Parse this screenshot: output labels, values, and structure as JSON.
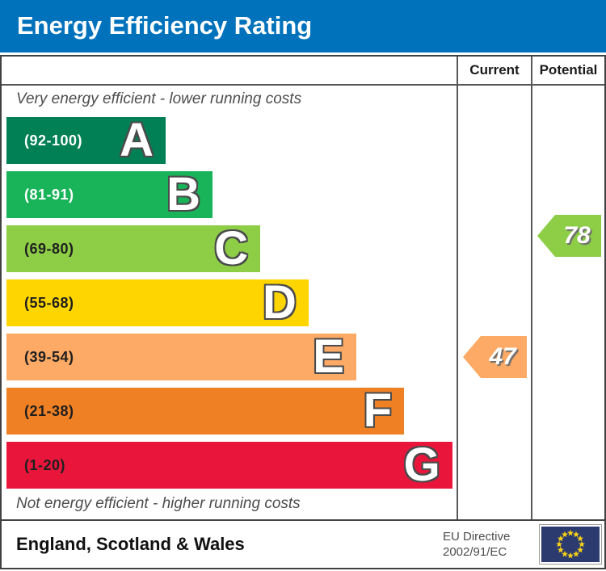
{
  "title": "Energy Efficiency Rating",
  "columns": {
    "current": "Current",
    "potential": "Potential"
  },
  "notes": {
    "top": "Very energy efficient - lower running costs",
    "bottom": "Not energy efficient - higher running costs"
  },
  "footer": {
    "region": "England, Scotland & Wales",
    "directive_line1": "EU Directive",
    "directive_line2": "2002/91/EC"
  },
  "colors": {
    "header_bg": "#0072bc",
    "border": "#414141",
    "note_text": "#4d4d4d",
    "eu_flag_bg": "#2b3a6f",
    "eu_flag_stars": "#f7d117",
    "current_arrow": "#fcaa65",
    "potential_arrow": "#8dce46"
  },
  "chart_data": {
    "type": "bar",
    "title": "Energy Efficiency Rating",
    "categories": [
      "A",
      "B",
      "C",
      "D",
      "E",
      "F",
      "G"
    ],
    "bands": [
      {
        "letter": "A",
        "range": "(92-100)",
        "min": 92,
        "max": 100,
        "color": "#008054",
        "width_pct": 35.0,
        "label_color": "#ffffff"
      },
      {
        "letter": "B",
        "range": "(81-91)",
        "min": 81,
        "max": 91,
        "color": "#19b459",
        "width_pct": 45.3,
        "label_color": "#ffffff"
      },
      {
        "letter": "C",
        "range": "(69-80)",
        "min": 69,
        "max": 80,
        "color": "#8dce46",
        "width_pct": 55.8,
        "label_color": "#1f1f1f"
      },
      {
        "letter": "D",
        "range": "(55-68)",
        "min": 55,
        "max": 68,
        "color": "#ffd500",
        "width_pct": 66.4,
        "label_color": "#1f1f1f"
      },
      {
        "letter": "E",
        "range": "(39-54)",
        "min": 39,
        "max": 54,
        "color": "#fcaa65",
        "width_pct": 76.9,
        "label_color": "#1f1f1f"
      },
      {
        "letter": "F",
        "range": "(21-38)",
        "min": 21,
        "max": 38,
        "color": "#ef8023",
        "width_pct": 87.4,
        "label_color": "#1f1f1f"
      },
      {
        "letter": "G",
        "range": "(1-20)",
        "min": 1,
        "max": 20,
        "color": "#e9153b",
        "width_pct": 98.0,
        "label_color": "#1f1f1f"
      }
    ],
    "ratings": {
      "current": {
        "value": 47,
        "band": "E",
        "color": "#fcaa65"
      },
      "potential": {
        "value": 78,
        "band": "C",
        "color": "#8dce46"
      }
    }
  }
}
